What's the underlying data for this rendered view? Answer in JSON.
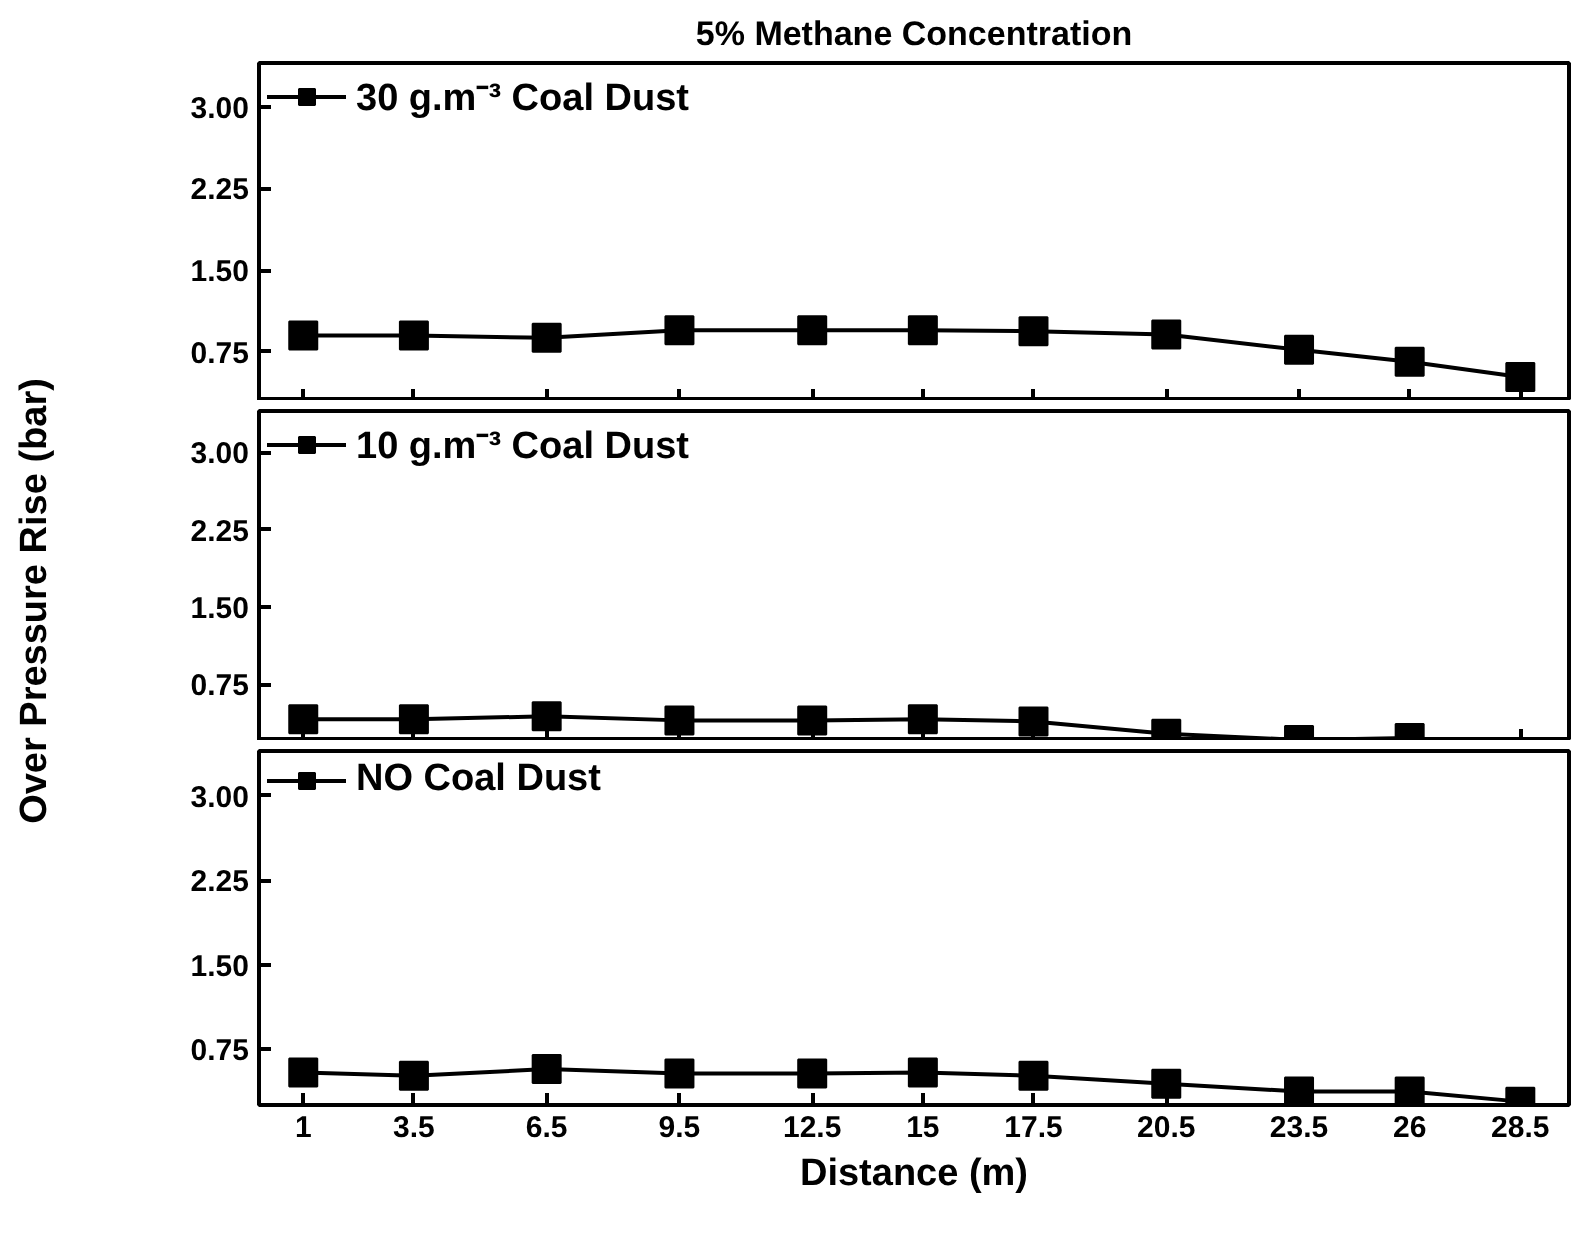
{
  "chart_data": [
    {
      "type": "line",
      "title": "5% Methane Concentration",
      "x": [
        1,
        3.5,
        6.5,
        9.5,
        12.5,
        15,
        17.5,
        20.5,
        23.5,
        26,
        28.5
      ],
      "xlim": [
        0,
        29.6
      ],
      "xticks": [
        1,
        3.5,
        6.5,
        9.5,
        12.5,
        15,
        17.5,
        20.5,
        23.5,
        26,
        28.5
      ],
      "ylim": [
        0.3,
        3.4
      ],
      "yticks": [
        {
          "value": 0.75,
          "label": "0.75"
        },
        {
          "value": 1.5,
          "label": "1.50"
        },
        {
          "value": 2.25,
          "label": "2.25"
        },
        {
          "value": 3.0,
          "label": "3.00"
        }
      ],
      "tick_labels": "y",
      "marker": "square",
      "line_style": "solid",
      "legend": "top left",
      "grid": false,
      "series": [
        {
          "name": "30 g.m⁻³ Coal Dust",
          "color": "#000000",
          "values": [
            0.9,
            0.9,
            0.88,
            0.95,
            0.95,
            0.95,
            0.94,
            0.91,
            0.77,
            0.66,
            0.52
          ]
        }
      ]
    },
    {
      "type": "line",
      "ylabel": "Over Pressure Rise (bar)",
      "xlim": [
        0,
        29.6
      ],
      "xticks": [
        1,
        3.5,
        6.5,
        9.5,
        12.5,
        15,
        17.5,
        20.5,
        23.5,
        26,
        28.5
      ],
      "ylim": [
        0.2,
        3.4
      ],
      "yticks": [
        {
          "value": 0.75,
          "label": "0.75"
        },
        {
          "value": 1.5,
          "label": "1.50"
        },
        {
          "value": 2.25,
          "label": "2.25"
        },
        {
          "value": 3.0,
          "label": "3.00"
        }
      ],
      "tick_labels": "y",
      "marker": "square",
      "line_style": "solid",
      "legend": "top left",
      "grid": false,
      "series": [
        {
          "name": "10 g.m⁻³ Coal Dust",
          "color": "#000000",
          "x": [
            1,
            3.5,
            6.5,
            9.5,
            12.5,
            15,
            17.5,
            20.5,
            23.5,
            26
          ],
          "values": [
            0.41,
            0.41,
            0.44,
            0.4,
            0.4,
            0.41,
            0.39,
            0.27,
            0.21,
            0.23
          ]
        }
      ]
    },
    {
      "type": "line",
      "xlabel": "Distance (m)",
      "x": [
        1,
        3.5,
        6.5,
        9.5,
        12.5,
        15,
        17.5,
        20.5,
        23.5,
        26,
        28.5
      ],
      "xlim": [
        0,
        29.6
      ],
      "xticks": [
        1,
        3.5,
        6.5,
        9.5,
        12.5,
        15,
        17.5,
        20.5,
        23.5,
        26,
        28.5
      ],
      "ylim": [
        0.25,
        3.4
      ],
      "yticks": [
        {
          "value": 0.75,
          "label": "0.75"
        },
        {
          "value": 1.5,
          "label": "1.50"
        },
        {
          "value": 2.25,
          "label": "2.25"
        },
        {
          "value": 3.0,
          "label": "3.00"
        }
      ],
      "marker": "square",
      "line_style": "solid",
      "legend": "top left",
      "grid": false,
      "series": [
        {
          "name": "NO Coal Dust",
          "color": "#000000",
          "values": [
            0.54,
            0.51,
            0.57,
            0.53,
            0.53,
            0.54,
            0.51,
            0.44,
            0.37,
            0.37,
            0.28
          ]
        }
      ]
    }
  ]
}
